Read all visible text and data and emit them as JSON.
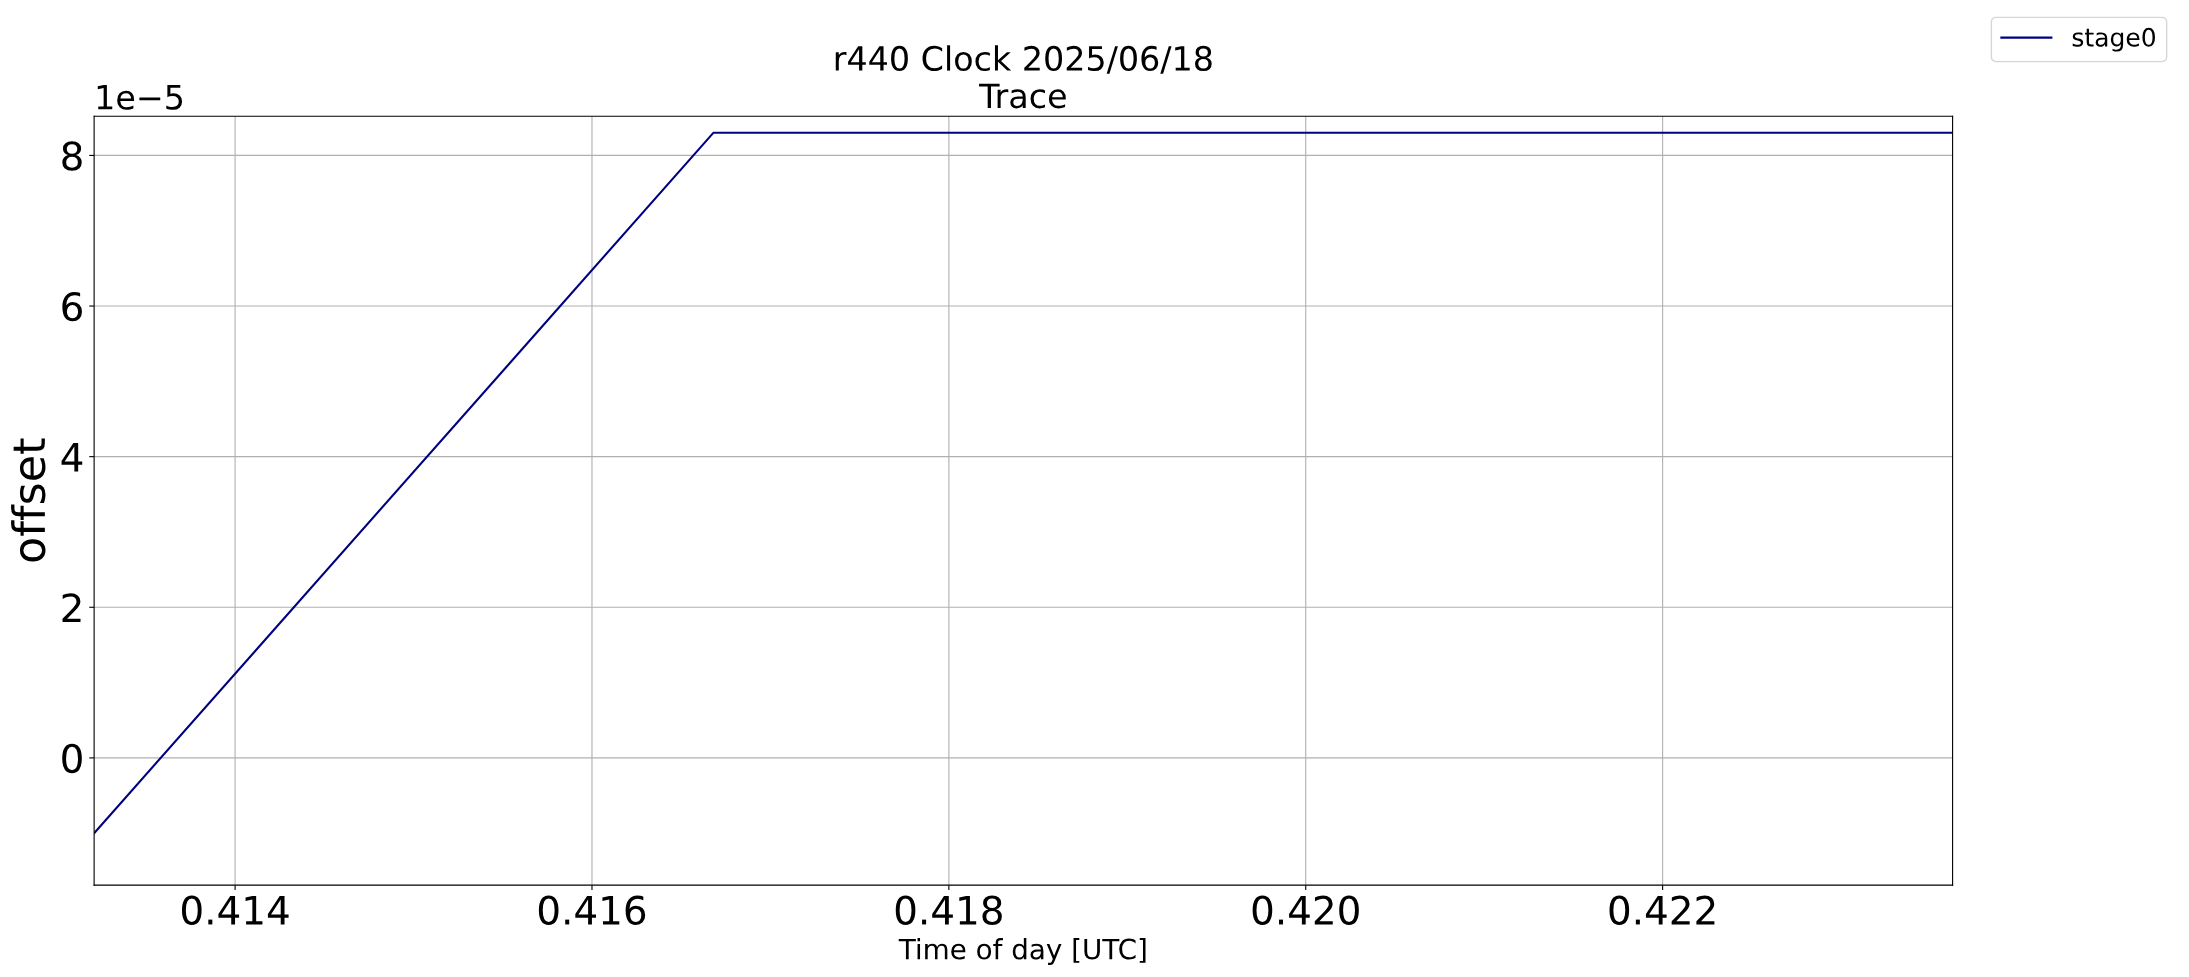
{
  "chart_data": {
    "type": "line",
    "title": "r440 Clock 2025/06/18\nTrace",
    "xlabel": "Time of day [UTC]",
    "ylabel": "offset",
    "series": [
      {
        "name": "stage0",
        "color": "#000080",
        "x": [
          0.41321,
          0.41668,
          0.423625
        ],
        "values": [
          -1.0,
          8.3,
          8.3
        ]
      }
    ],
    "xlim": [
      0.41321,
      0.423625
    ],
    "xticks": [
      0.414,
      0.416,
      0.418,
      {
        "value": 0.42,
        "label": "0.420"
      },
      0.422
    ],
    "ylim": [
      -1.69,
      8.52
    ],
    "yticks": [
      0,
      2,
      4,
      6,
      8
    ],
    "annotations": [
      "1e−5"
    ],
    "grid": true,
    "legend": "top right",
    "marker": "none",
    "line_style": "solid"
  }
}
